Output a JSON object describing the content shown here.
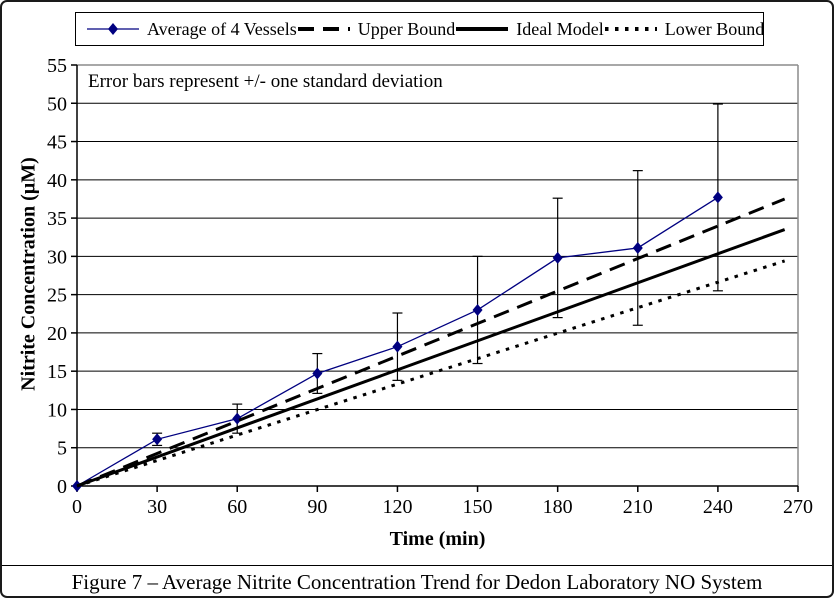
{
  "figure": {
    "caption": "Figure 7 – Average Nitrite Concentration Trend for Dedon Laboratory NO System",
    "annotation": "Error bars represent +/- one standard deviation"
  },
  "chart_data": {
    "type": "line",
    "title": "",
    "xlabel": "Time (min)",
    "ylabel": "Nitrite Concentration (µM)",
    "xlim": [
      0,
      270
    ],
    "ylim": [
      0,
      55
    ],
    "x_ticks": [
      0,
      30,
      60,
      90,
      120,
      150,
      180,
      210,
      240,
      270
    ],
    "y_ticks": [
      0,
      5,
      10,
      15,
      20,
      25,
      30,
      35,
      40,
      45,
      50,
      55
    ],
    "grid": "horizontal-only",
    "legend_position": "top-outside",
    "colors": {
      "average_series": "#000080",
      "bound_lines": "#000000",
      "gridlines": "#000000",
      "plot_border": "#8c8c8c",
      "error_bars": "#000000"
    },
    "series": [
      {
        "name": "Average of 4 Vessels",
        "style": "marker-line",
        "marker": "diamond",
        "color": "#000080",
        "x": [
          0,
          30,
          60,
          90,
          120,
          150,
          180,
          210,
          240
        ],
        "y": [
          0,
          6.1,
          8.8,
          14.7,
          18.2,
          23.0,
          29.8,
          31.1,
          37.7
        ],
        "error_y": [
          0,
          0.8,
          1.9,
          2.6,
          4.4,
          7.0,
          7.8,
          10.1,
          12.2
        ]
      },
      {
        "name": "Upper Bound",
        "style": "dashed",
        "color": "#000000",
        "x": [
          0,
          265
        ],
        "y": [
          0,
          37.5
        ]
      },
      {
        "name": "Ideal Model",
        "style": "solid",
        "color": "#000000",
        "x": [
          0,
          265
        ],
        "y": [
          0,
          33.5
        ]
      },
      {
        "name": "Lower Bound",
        "style": "dotted",
        "color": "#000000",
        "x": [
          0,
          265
        ],
        "y": [
          0,
          29.4
        ]
      }
    ]
  }
}
